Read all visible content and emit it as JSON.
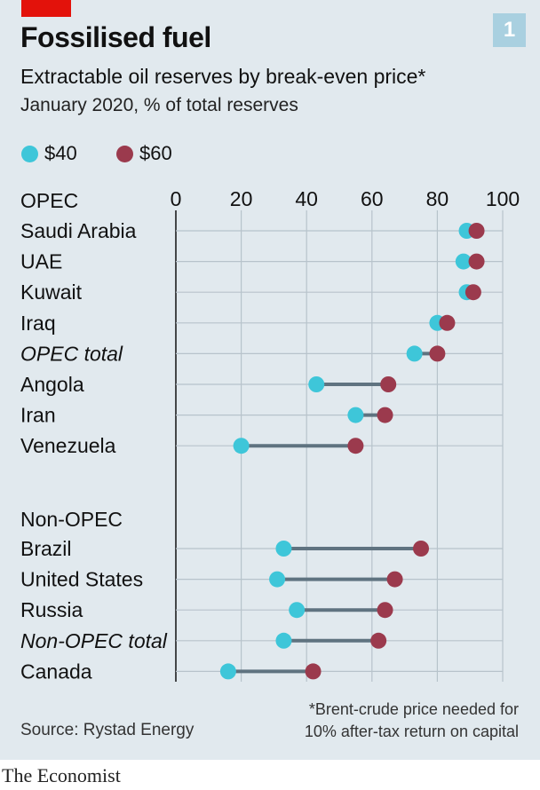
{
  "header": {
    "title": "Fossilised fuel",
    "subtitle": "Extractable oil reserves by break-even price*",
    "subtitle2": "January 2020, % of total reserves",
    "chart_number": "1"
  },
  "legend": [
    {
      "label": "$40",
      "color": "#3ec6d9"
    },
    {
      "label": "$60",
      "color": "#9b3a4d"
    }
  ],
  "colors": {
    "panel_bg": "#e1e9ee",
    "connector": "#5f7380",
    "gridline": "#b7c3cb",
    "brand_red": "#e3120b",
    "badge": "#a9d0e0"
  },
  "footer": {
    "footnote_line1": "*Brent-crude price needed for",
    "footnote_line2": "10% after-tax return on capital",
    "source": "Source: Rystad Energy",
    "brand": "The Economist"
  },
  "chart_data": {
    "type": "dumbbell",
    "title": "Fossilised fuel",
    "subtitle": "Extractable oil reserves by break-even price*",
    "xlabel": "January 2020, % of total reserves",
    "xlim": [
      0,
      100
    ],
    "xticks": [
      0,
      20,
      40,
      60,
      80,
      100
    ],
    "series": [
      {
        "name": "$40",
        "color": "#3ec6d9"
      },
      {
        "name": "$60",
        "color": "#9b3a4d"
      }
    ],
    "groups": [
      {
        "name": "OPEC",
        "rows": [
          {
            "label": "Saudi Arabia",
            "italic": false,
            "v40": 89,
            "v60": 92
          },
          {
            "label": "UAE",
            "italic": false,
            "v40": 88,
            "v60": 92
          },
          {
            "label": "Kuwait",
            "italic": false,
            "v40": 89,
            "v60": 91
          },
          {
            "label": "Iraq",
            "italic": false,
            "v40": 80,
            "v60": 83
          },
          {
            "label": "OPEC total",
            "italic": true,
            "v40": 73,
            "v60": 80
          },
          {
            "label": "Angola",
            "italic": false,
            "v40": 43,
            "v60": 65
          },
          {
            "label": "Iran",
            "italic": false,
            "v40": 55,
            "v60": 64
          },
          {
            "label": "Venezuela",
            "italic": false,
            "v40": 20,
            "v60": 55
          }
        ]
      },
      {
        "name": "Non-OPEC",
        "rows": [
          {
            "label": "Brazil",
            "italic": false,
            "v40": 33,
            "v60": 75
          },
          {
            "label": "United States",
            "italic": false,
            "v40": 31,
            "v60": 67
          },
          {
            "label": "Russia",
            "italic": false,
            "v40": 37,
            "v60": 64
          },
          {
            "label": "Non-OPEC total",
            "italic": true,
            "v40": 33,
            "v60": 62
          },
          {
            "label": "Canada",
            "italic": false,
            "v40": 16,
            "v60": 42
          }
        ]
      }
    ]
  }
}
